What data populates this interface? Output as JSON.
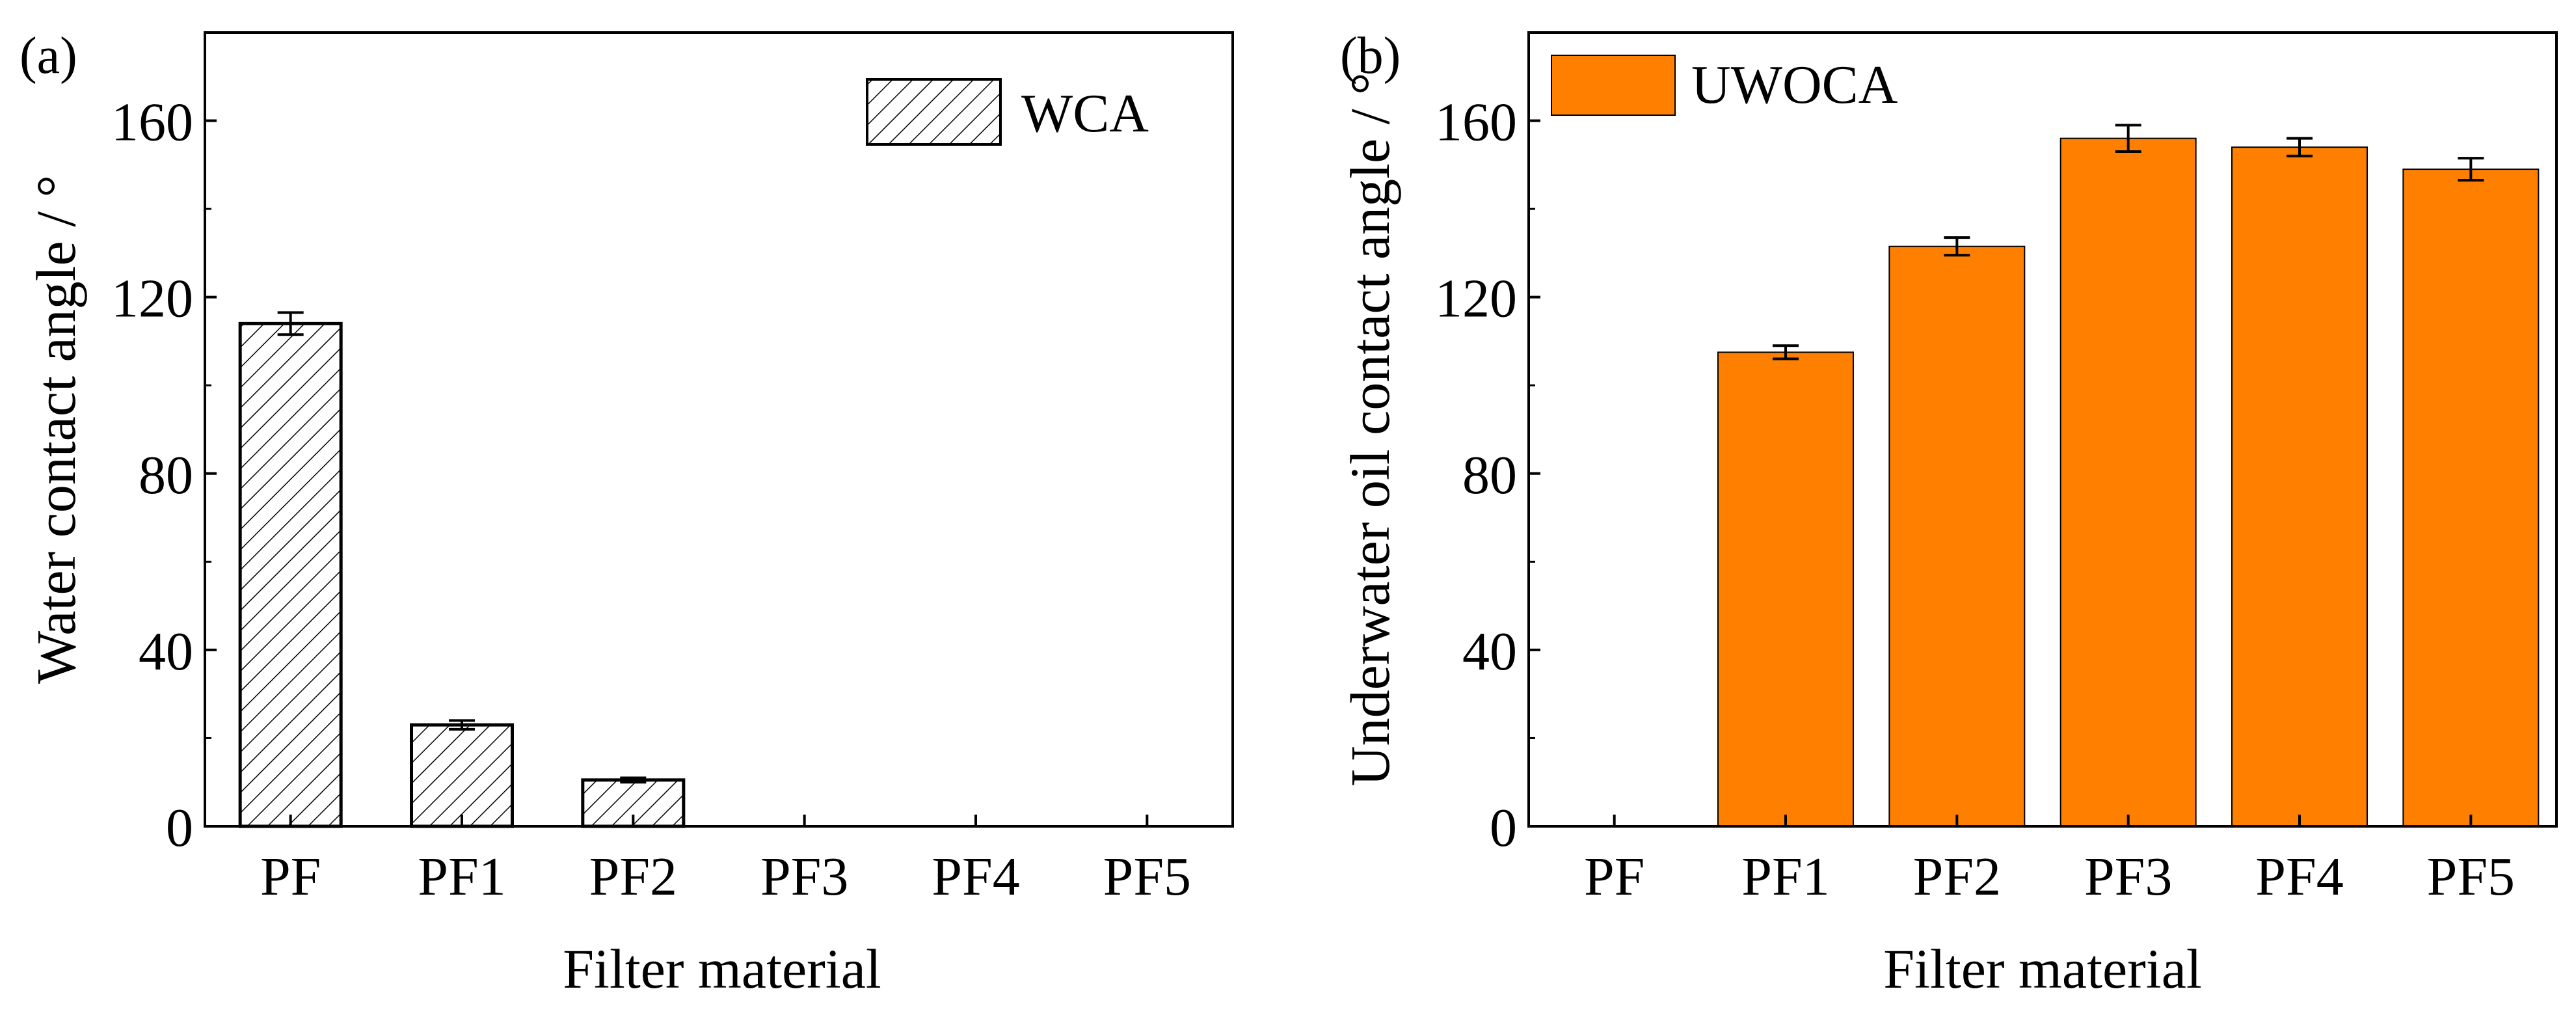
{
  "chart_data": [
    {
      "type": "bar",
      "panel_label": "(a)",
      "categories": [
        "PF",
        "PF1",
        "PF2",
        "PF3",
        "PF4",
        "PF5"
      ],
      "series": [
        {
          "name": "WCA",
          "values": [
            114,
            23,
            10.5,
            0,
            0,
            0
          ],
          "errors": [
            2.5,
            1,
            0.5,
            0,
            0,
            0
          ],
          "fill": "hatch",
          "color": "#ffffff",
          "stroke": "#000000"
        }
      ],
      "xlabel": "Filter material",
      "ylabel": "Water contact angle  / °",
      "ylim": [
        0,
        180
      ],
      "yticks": [
        0,
        40,
        80,
        120,
        160
      ],
      "legend_position": "top-right",
      "grid": false
    },
    {
      "type": "bar",
      "panel_label": "(b)",
      "categories": [
        "PF",
        "PF1",
        "PF2",
        "PF3",
        "PF4",
        "PF5"
      ],
      "series": [
        {
          "name": "UWOCA",
          "values": [
            0,
            107.5,
            131.5,
            156,
            154,
            149
          ],
          "errors": [
            0,
            1.5,
            2,
            3,
            2,
            2.5
          ],
          "fill": "solid",
          "color": "#ff8000",
          "stroke": "#000000"
        }
      ],
      "xlabel": "Filter material",
      "ylabel": "Underwater oil contact angle / °",
      "ylim": [
        0,
        180
      ],
      "yticks": [
        0,
        40,
        80,
        120,
        160
      ],
      "legend_position": "top-left",
      "grid": false
    }
  ]
}
